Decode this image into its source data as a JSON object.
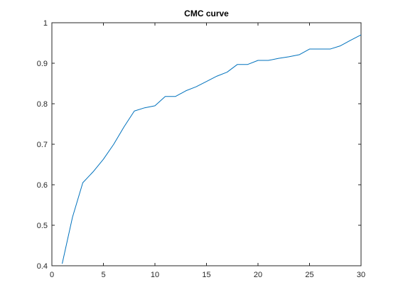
{
  "chart_data": {
    "type": "line",
    "title": "CMC curve",
    "xlabel": "",
    "ylabel": "",
    "xlim": [
      0,
      30
    ],
    "ylim": [
      0.4,
      1
    ],
    "xticks": [
      0,
      5,
      10,
      15,
      20,
      25,
      30
    ],
    "yticks": [
      0.4,
      0.5,
      0.6,
      0.7,
      0.8,
      0.9,
      1
    ],
    "xtick_labels": [
      "0",
      "5",
      "10",
      "15",
      "20",
      "25",
      "30"
    ],
    "ytick_labels": [
      "0.4",
      "0.5",
      "0.6",
      "0.7",
      "0.8",
      "0.9",
      "1"
    ],
    "grid": false,
    "box": true,
    "line_color": "#0072BD",
    "series": [
      {
        "x": [
          1,
          2,
          3,
          4,
          5,
          6,
          7,
          8,
          9,
          10,
          11,
          12,
          13,
          14,
          15,
          16,
          17,
          18,
          19,
          20,
          21,
          22,
          23,
          24,
          25,
          26,
          27,
          28,
          29,
          30
        ],
        "values": [
          0.405,
          0.52,
          0.605,
          0.632,
          0.663,
          0.7,
          0.743,
          0.782,
          0.79,
          0.795,
          0.818,
          0.818,
          0.832,
          0.842,
          0.855,
          0.868,
          0.878,
          0.897,
          0.897,
          0.907,
          0.907,
          0.912,
          0.916,
          0.921,
          0.935,
          0.935,
          0.935,
          0.943,
          0.957,
          0.97
        ]
      }
    ]
  }
}
